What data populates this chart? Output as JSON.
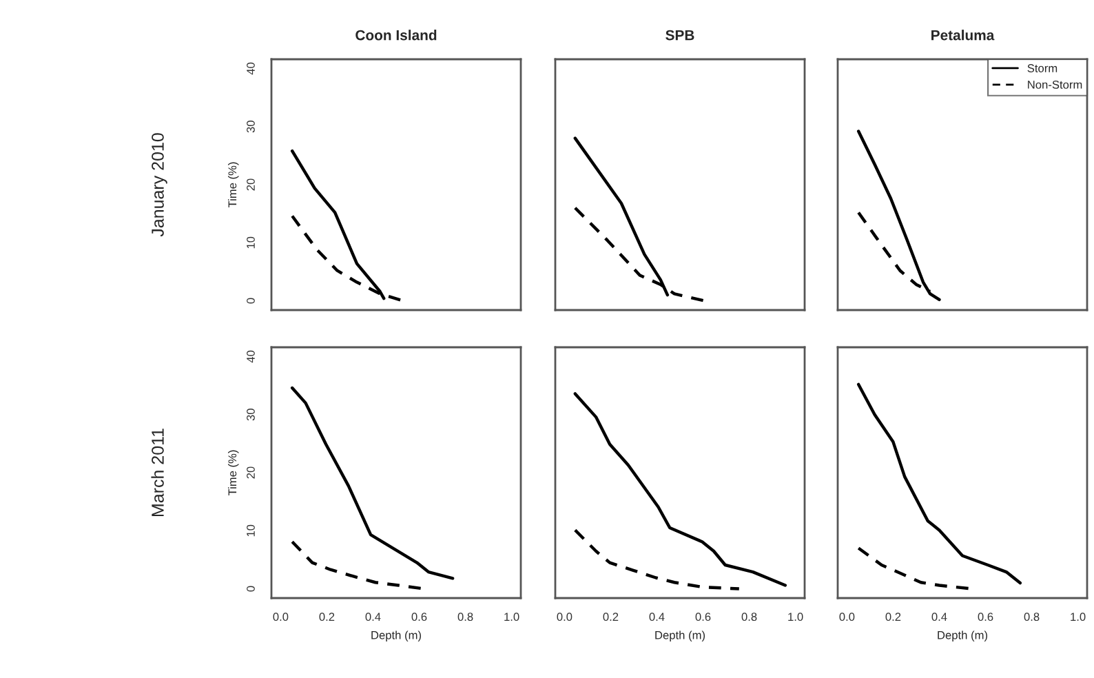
{
  "chart_data": [
    {
      "type": "line",
      "title": "Coon Island",
      "ylabel": "Time (%)",
      "annotations": [
        "January 2010"
      ],
      "xlim": [
        -0.04,
        1.04
      ],
      "ylim": [
        -1.6,
        41.6
      ],
      "yticks": [
        0,
        10,
        20,
        30,
        40
      ],
      "tick_labels": "y",
      "grid": false,
      "legend": false,
      "series": [
        {
          "color": "#000000",
          "line_style": "solid",
          "x": [
            0.05,
            0.147,
            0.235,
            0.33,
            0.43,
            0.447
          ],
          "values": [
            25.8,
            19.4,
            15.2,
            6.4,
            1.6,
            0.4
          ]
        },
        {
          "color": "#000000",
          "line_style": "dashed",
          "x": [
            0.05,
            0.157,
            0.245,
            0.33,
            0.43,
            0.53
          ],
          "values": [
            14.6,
            8.8,
            5.2,
            3.2,
            1.2,
            0
          ]
        }
      ]
    },
    {
      "type": "line",
      "title": "SPB",
      "xlim": [
        -0.04,
        1.04
      ],
      "ylim": [
        -1.6,
        41.6
      ],
      "tick_labels": false,
      "grid": false,
      "legend": false,
      "series": [
        {
          "color": "#000000",
          "line_style": "solid",
          "x": [
            0.046,
            0.246,
            0.346,
            0.416,
            0.446
          ],
          "values": [
            28,
            16.8,
            8,
            3.6,
            1
          ]
        },
        {
          "color": "#000000",
          "line_style": "dashed",
          "x": [
            0.046,
            0.186,
            0.326,
            0.416,
            0.476,
            0.606
          ],
          "values": [
            16,
            10.4,
            4.4,
            2.8,
            1.2,
            0
          ]
        }
      ]
    },
    {
      "type": "line",
      "title": "Petaluma",
      "xlim": [
        -0.04,
        1.04
      ],
      "ylim": [
        -1.6,
        41.6
      ],
      "tick_labels": false,
      "grid": false,
      "legend": "top right",
      "series": [
        {
          "name": "Storm",
          "color": "#000000",
          "line_style": "solid",
          "x": [
            0.05,
            0.12,
            0.19,
            0.26,
            0.33,
            0.36,
            0.4
          ],
          "values": [
            29.2,
            23.5,
            17.6,
            10.5,
            3.2,
            1.2,
            0.2
          ]
        },
        {
          "name": "Non-Storm",
          "color": "#000000",
          "line_style": "dashed",
          "x": [
            0.05,
            0.15,
            0.23,
            0.3,
            0.36
          ],
          "values": [
            15.2,
            9.6,
            5.2,
            2.8,
            1.6
          ]
        }
      ]
    },
    {
      "type": "line",
      "xlabel": "Depth (m)",
      "ylabel": "Time (%)",
      "annotations": [
        "March 2011"
      ],
      "xlim": [
        -0.04,
        1.04
      ],
      "ylim": [
        -1.6,
        41.6
      ],
      "xticks": [
        {
          "value": 0,
          "label": "0.0"
        },
        {
          "value": 0.2,
          "label": "0.2"
        },
        {
          "value": 0.4,
          "label": "0.4"
        },
        {
          "value": 0.6,
          "label": "0.6"
        },
        {
          "value": 0.8,
          "label": "0.8"
        },
        {
          "value": 1,
          "label": "1.0"
        }
      ],
      "yticks": [
        0,
        10,
        20,
        30,
        40
      ],
      "grid": false,
      "legend": false,
      "series": [
        {
          "color": "#000000",
          "line_style": "solid",
          "x": [
            0.05,
            0.108,
            0.196,
            0.294,
            0.39,
            0.49,
            0.59,
            0.64,
            0.745
          ],
          "values": [
            34.6,
            32,
            24.9,
            17.7,
            9.3,
            6.9,
            4.5,
            2.9,
            1.8
          ]
        },
        {
          "color": "#000000",
          "line_style": "dashed",
          "x": [
            0.05,
            0.137,
            0.216,
            0.31,
            0.41,
            0.51,
            0.62
          ],
          "values": [
            8.1,
            4.5,
            3.3,
            2.2,
            1.1,
            0.6,
            0
          ]
        }
      ]
    },
    {
      "type": "line",
      "xlabel": "Depth (m)",
      "xlim": [
        -0.04,
        1.04
      ],
      "ylim": [
        -1.6,
        41.6
      ],
      "xticks": [
        {
          "value": 0,
          "label": "0.0"
        },
        {
          "value": 0.2,
          "label": "0.2"
        },
        {
          "value": 0.4,
          "label": "0.4"
        },
        {
          "value": 0.6,
          "label": "0.6"
        },
        {
          "value": 0.8,
          "label": "0.8"
        },
        {
          "value": 1,
          "label": "1.0"
        }
      ],
      "tick_labels": "x",
      "grid": false,
      "legend": false,
      "series": [
        {
          "color": "#000000",
          "line_style": "solid",
          "x": [
            0.046,
            0.136,
            0.196,
            0.276,
            0.406,
            0.456,
            0.596,
            0.646,
            0.696,
            0.816,
            0.956
          ],
          "values": [
            33.6,
            29.6,
            24.9,
            21.3,
            14.1,
            10.5,
            8.1,
            6.5,
            4.1,
            2.9,
            0.6
          ]
        },
        {
          "color": "#000000",
          "line_style": "dashed",
          "x": [
            0.046,
            0.136,
            0.196,
            0.296,
            0.396,
            0.476,
            0.596,
            0.756
          ],
          "values": [
            10.1,
            6.5,
            4.5,
            3.2,
            1.9,
            1.1,
            0.3,
            0
          ]
        }
      ]
    },
    {
      "type": "line",
      "xlabel": "Depth (m)",
      "xlim": [
        -0.04,
        1.04
      ],
      "ylim": [
        -1.6,
        41.6
      ],
      "xticks": [
        {
          "value": 0,
          "label": "0.0"
        },
        {
          "value": 0.2,
          "label": "0.2"
        },
        {
          "value": 0.4,
          "label": "0.4"
        },
        {
          "value": 0.6,
          "label": "0.6"
        },
        {
          "value": 0.8,
          "label": "0.8"
        },
        {
          "value": 1,
          "label": "1.0"
        }
      ],
      "tick_labels": "x",
      "grid": false,
      "legend": false,
      "series": [
        {
          "color": "#000000",
          "line_style": "solid",
          "x": [
            0.05,
            0.12,
            0.2,
            0.25,
            0.35,
            0.4,
            0.5,
            0.61,
            0.69,
            0.75
          ],
          "values": [
            35.2,
            30,
            25.3,
            19.3,
            11.7,
            10.1,
            5.7,
            4.1,
            2.9,
            1
          ]
        },
        {
          "color": "#000000",
          "line_style": "dashed",
          "x": [
            0.05,
            0.15,
            0.23,
            0.32,
            0.4,
            0.54
          ],
          "values": [
            7,
            4.1,
            2.7,
            1.1,
            0.6,
            0
          ]
        }
      ]
    }
  ]
}
